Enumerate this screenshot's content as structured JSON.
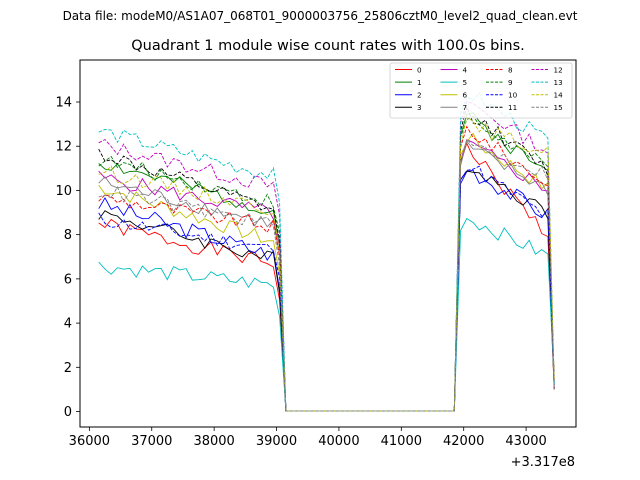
{
  "chart_data": {
    "type": "line",
    "suptitle": "Data file: modeM0/AS1A07_068T01_9000003756_25806cztM0_level2_quad_clean.evt",
    "title": "Quadrant 1 module wise count rates with 100.0s bins.",
    "xlabel": "",
    "ylabel": "",
    "x_offset_label": "+3.317e8",
    "xlim": [
      35850,
      43800
    ],
    "ylim": [
      -0.7,
      15.9
    ],
    "xticks": [
      36000,
      37000,
      38000,
      39000,
      40000,
      41000,
      42000,
      43000
    ],
    "yticks": [
      0,
      2,
      4,
      6,
      8,
      10,
      12,
      14
    ],
    "segments": [
      {
        "t0": 36150,
        "t1": 39050,
        "step": 100
      },
      {
        "t0": 39150,
        "t1": 41850,
        "step": 100
      },
      {
        "t0": 41950,
        "t1": 43450,
        "step": 100
      }
    ],
    "legend": {
      "position": "top-right",
      "columns": 4
    },
    "series": [
      {
        "name": "0",
        "color": "#ff0000",
        "dash": false,
        "level1": 8.5,
        "slope1": -1.9,
        "level3": 12.2,
        "slope3": -4.5,
        "noise": 0.35
      },
      {
        "name": "1",
        "color": "#008000",
        "dash": false,
        "level1": 11.3,
        "slope1": -2.3,
        "level3": 13.6,
        "slope3": -3.0,
        "noise": 0.35
      },
      {
        "name": "2",
        "color": "#0000ff",
        "dash": false,
        "level1": 9.4,
        "slope1": -2.4,
        "level3": 11.2,
        "slope3": -2.5,
        "noise": 0.4
      },
      {
        "name": "3",
        "color": "#000000",
        "dash": false,
        "level1": 9.0,
        "slope1": -2.2,
        "level3": 11.4,
        "slope3": -2.6,
        "noise": 0.35
      },
      {
        "name": "4",
        "color": "#bf00bf",
        "dash": false,
        "level1": 10.6,
        "slope1": -1.7,
        "level3": 12.3,
        "slope3": -2.4,
        "noise": 0.35
      },
      {
        "name": "5",
        "color": "#00bfbf",
        "dash": false,
        "level1": 6.6,
        "slope1": -0.9,
        "level3": 8.9,
        "slope3": -2.0,
        "noise": 0.35
      },
      {
        "name": "6",
        "color": "#bfbf00",
        "dash": false,
        "level1": 10.2,
        "slope1": -2.6,
        "level3": 12.6,
        "slope3": -2.7,
        "noise": 0.35
      },
      {
        "name": "7",
        "color": "#808080",
        "dash": false,
        "level1": 10.4,
        "slope1": -2.0,
        "level3": 12.1,
        "slope3": -2.2,
        "noise": 0.35
      },
      {
        "name": "8",
        "color": "#ff0000",
        "dash": true,
        "level1": 9.7,
        "slope1": -1.4,
        "level3": 13.0,
        "slope3": -2.9,
        "noise": 0.35
      },
      {
        "name": "9",
        "color": "#008000",
        "dash": true,
        "level1": 11.4,
        "slope1": -2.0,
        "level3": 13.5,
        "slope3": -2.7,
        "noise": 0.35
      },
      {
        "name": "10",
        "color": "#0000ff",
        "dash": true,
        "level1": 8.7,
        "slope1": -1.4,
        "level3": 11.4,
        "slope3": -2.8,
        "noise": 0.35
      },
      {
        "name": "11",
        "color": "#000000",
        "dash": true,
        "level1": 11.7,
        "slope1": -2.7,
        "level3": 13.8,
        "slope3": -3.1,
        "noise": 0.35
      },
      {
        "name": "12",
        "color": "#bf00bf",
        "dash": true,
        "level1": 12.1,
        "slope1": -2.0,
        "level3": 14.2,
        "slope3": -2.6,
        "noise": 0.35
      },
      {
        "name": "13",
        "color": "#00bfbf",
        "dash": true,
        "level1": 12.7,
        "slope1": -2.1,
        "level3": 14.6,
        "slope3": -2.5,
        "noise": 0.35
      },
      {
        "name": "14",
        "color": "#bfbf00",
        "dash": true,
        "level1": 10.9,
        "slope1": -1.8,
        "level3": 13.1,
        "slope3": -1.5,
        "noise": 0.35
      },
      {
        "name": "15",
        "color": "#808080",
        "dash": true,
        "level1": 10.0,
        "slope1": -1.6,
        "level3": 12.3,
        "slope3": -1.7,
        "noise": 0.35
      }
    ]
  }
}
